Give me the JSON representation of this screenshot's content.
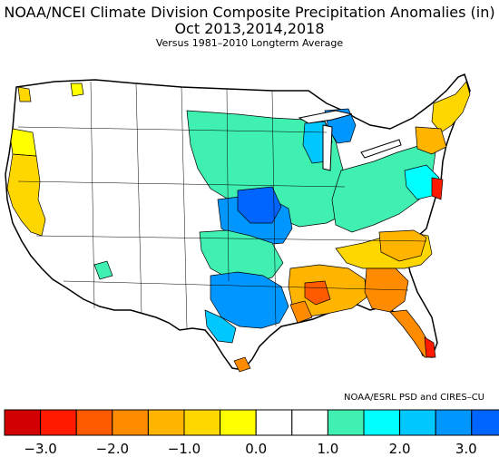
{
  "header": {
    "title": "NOAA/NCEI Climate Division Composite Precipitation Anomalies (in)",
    "period": "Oct   2013,2014,2018",
    "baseline": "Versus 1981–2010 Longterm Average"
  },
  "credit": "NOAA/ESRL PSD and CIRES–CU",
  "legend": {
    "colors": [
      "#d20000",
      "#ff1a00",
      "#ff5a00",
      "#ff8c00",
      "#ffb400",
      "#ffd700",
      "#ffff00",
      "#ffffff",
      "#ffffff",
      "#3ff0b0",
      "#00ffff",
      "#00c8ff",
      "#0096ff",
      "#0064ff",
      "#0032ff"
    ],
    "labels": [
      "−3.0",
      "−2.0",
      "−1.0",
      "0.0",
      "1.0",
      "2.0",
      "3.0"
    ]
  },
  "map": {
    "regions": [
      {
        "name": "pacific-northwest-coast",
        "color": "#ffd700"
      },
      {
        "name": "california",
        "color": "#ffd700"
      },
      {
        "name": "north-central-plains",
        "color": "#3ff0b0"
      },
      {
        "name": "upper-michigan",
        "color": "#00c8ff"
      },
      {
        "name": "central-plains-missouri",
        "color": "#0096ff"
      },
      {
        "name": "ohio-valley-east",
        "color": "#3ff0b0"
      },
      {
        "name": "texas-oklahoma",
        "color": "#0096ff"
      },
      {
        "name": "gulf-coast",
        "color": "#ff8c00"
      },
      {
        "name": "florida-georgia",
        "color": "#ff8c00"
      },
      {
        "name": "southeast-carolinas",
        "color": "#ffd700"
      },
      {
        "name": "new-england",
        "color": "#ffd700"
      }
    ]
  }
}
